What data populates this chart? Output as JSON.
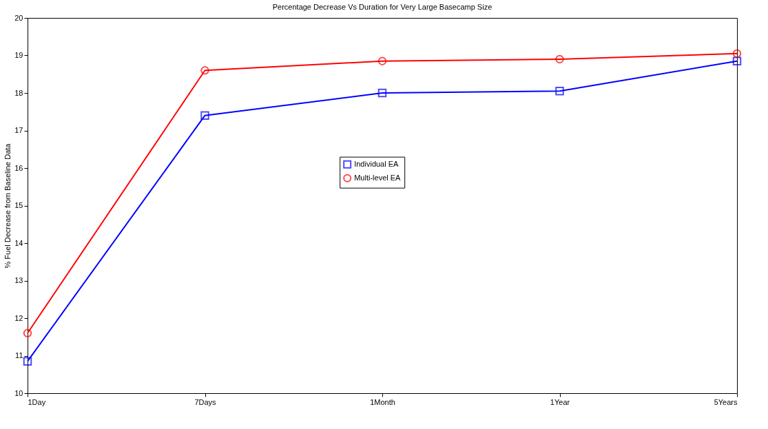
{
  "chart_data": {
    "type": "line",
    "title": "Percentage Decrease Vs Duration for Very Large Basecamp Size",
    "ylabel": "% Fuel Decrease from Baseline Data",
    "categories": [
      "1Day",
      "7Days",
      "1Month",
      "1Year",
      "5Years"
    ],
    "series": [
      {
        "name": "Individual EA",
        "color": "#0000ff",
        "marker": "square",
        "values": [
          10.85,
          17.4,
          18.0,
          18.05,
          18.85
        ]
      },
      {
        "name": "Multi-level EA",
        "color": "#ff0000",
        "marker": "circle",
        "values": [
          11.6,
          18.6,
          18.85,
          18.9,
          19.05
        ]
      }
    ],
    "ylim": [
      10,
      20
    ],
    "yticks": [
      10,
      11,
      12,
      13,
      14,
      15,
      16,
      17,
      18,
      19,
      20
    ],
    "grid": false,
    "legend": "center",
    "line_style": "solid"
  }
}
